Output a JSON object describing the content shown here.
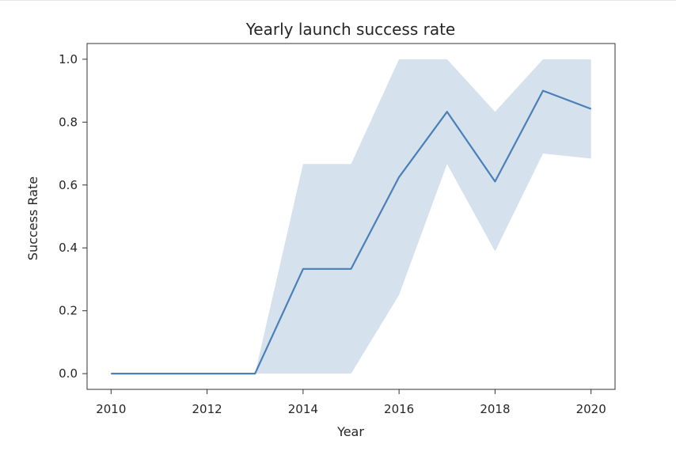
{
  "chart_data": {
    "type": "line",
    "title": "Yearly launch success rate",
    "xlabel": "Year",
    "ylabel": "Success Rate",
    "x": [
      2010,
      2012,
      2013,
      2014,
      2015,
      2016,
      2017,
      2018,
      2019,
      2020
    ],
    "series": [
      {
        "values": [
          0.0,
          0.0,
          0.0,
          0.333,
          0.333,
          0.625,
          0.833,
          0.611,
          0.9,
          0.842
        ],
        "ci_lower": [
          0.0,
          0.0,
          0.0,
          0.0,
          0.0,
          0.25,
          0.667,
          0.389,
          0.7,
          0.684
        ],
        "ci_upper": [
          0.0,
          0.0,
          0.0,
          0.667,
          0.667,
          1.0,
          1.0,
          0.833,
          1.0,
          1.0
        ],
        "color": "#4a7fb8",
        "band_color": "#d6e1ee"
      }
    ],
    "xlim": [
      2009.5,
      2020.5
    ],
    "ylim": [
      -0.05,
      1.05
    ],
    "xticks": [
      2010,
      2012,
      2014,
      2016,
      2018,
      2020
    ],
    "xtick_labels": [
      "2010",
      "2012",
      "2014",
      "2016",
      "2018",
      "2020"
    ],
    "yticks": [
      0.0,
      0.2,
      0.4,
      0.6,
      0.8,
      1.0
    ],
    "ytick_labels": [
      "0.0",
      "0.2",
      "0.4",
      "0.6",
      "0.8",
      "1.0"
    ],
    "grid": false,
    "legend": "none"
  }
}
